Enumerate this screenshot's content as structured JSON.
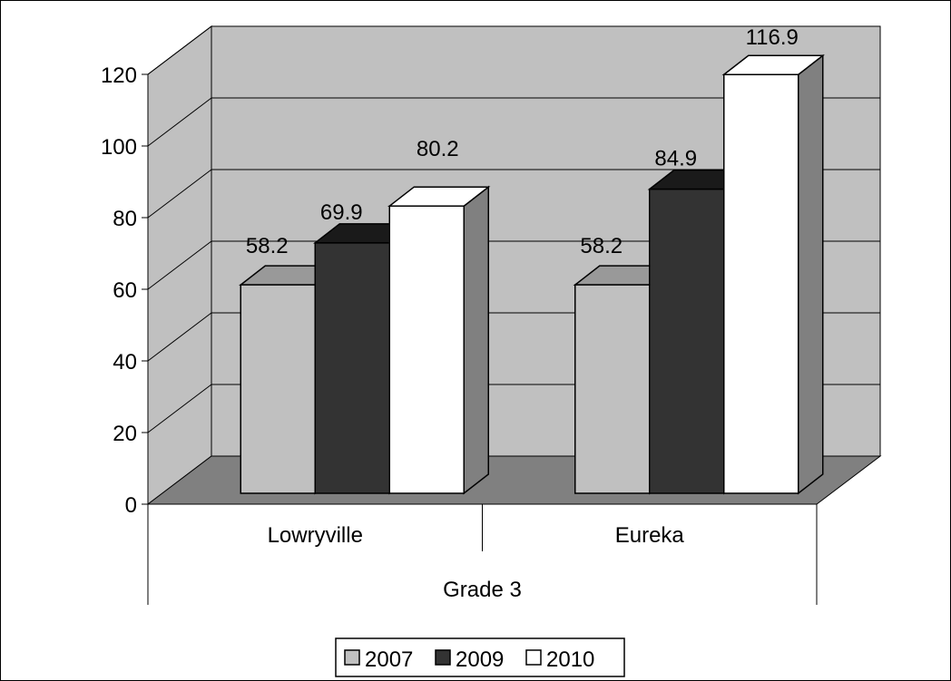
{
  "chart_data": {
    "type": "bar",
    "title": "",
    "xlabel": "",
    "ylabel": "",
    "group_label": "Grade 3",
    "categories": [
      "Lowryville",
      "Eureka"
    ],
    "series": [
      {
        "name": "2007",
        "values": [
          58.2,
          58.2
        ],
        "color": "#c0c0c0"
      },
      {
        "name": "2009",
        "values": [
          69.9,
          84.9
        ],
        "color": "#333333"
      },
      {
        "name": "2010",
        "values": [
          80.2,
          116.9
        ],
        "color": "#ffffff"
      }
    ],
    "data_labels": [
      [
        "58.2",
        "58.2"
      ],
      [
        "69.9",
        "84.9"
      ],
      [
        "80.2",
        "116.9"
      ]
    ],
    "ylim": [
      0,
      120
    ],
    "yticks": [
      "0",
      "20",
      "40",
      "60",
      "80",
      "100",
      "120"
    ],
    "grid": true,
    "legend_position": "bottom",
    "style": "3d-clustered-column",
    "colors": {
      "wall": "#c0c0c0",
      "floor": "#808080",
      "side": "#808080",
      "dark_top": "#1a1a1a",
      "light_top": "#999999"
    }
  }
}
